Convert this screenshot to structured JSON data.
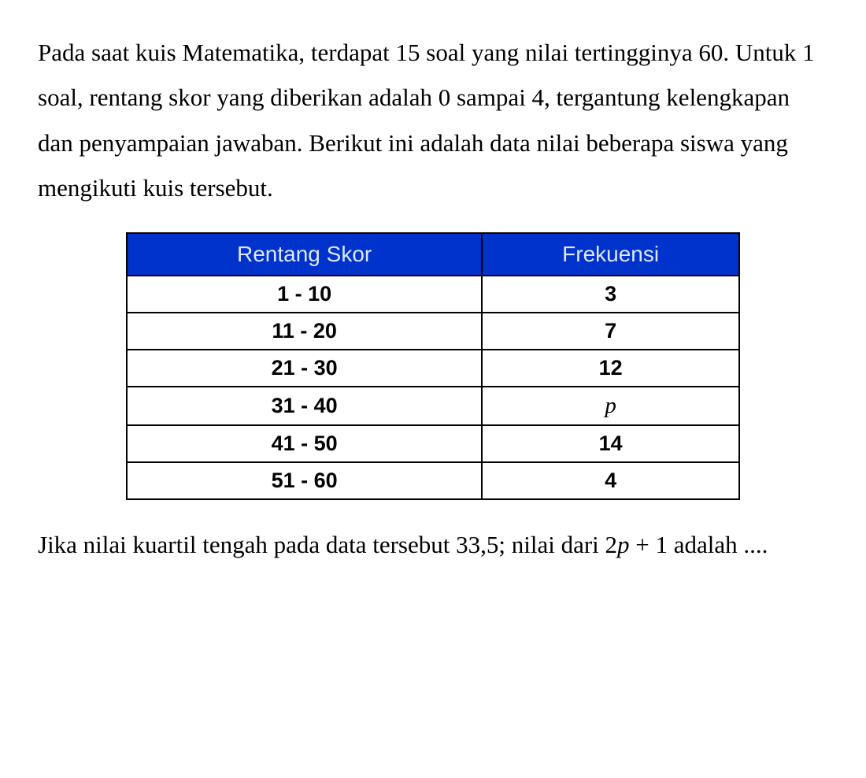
{
  "paragraph": "Pada saat kuis Matematika, terdapat 15 soal yang nilai tertingginya 60. Untuk 1 soal, rentang skor yang diberikan adalah 0 sampai 4, tergantung kelengkapan dan penyampaian jawaban. Berikut ini adalah data nilai beberapa siswa yang mengikuti kuis tersebut.",
  "table": {
    "headers": [
      "Rentang Skor",
      "Frekuensi"
    ],
    "rows": [
      [
        "1 - 10",
        "3"
      ],
      [
        "11 - 20",
        "7"
      ],
      [
        "21 - 30",
        "12"
      ],
      [
        "31 - 40",
        "p"
      ],
      [
        "41 - 50",
        "14"
      ],
      [
        "51 - 60",
        "4"
      ]
    ],
    "header_bg": "#0033cc",
    "header_text_color": "#dfe6ff",
    "border_color": "#000000",
    "cell_text_color": "#000000",
    "header_fontsize": 28,
    "cell_fontsize": 27
  },
  "question_parts": {
    "prefix": "Jika nilai kuartil tengah pada data tersebut 33,5; nilai dari ",
    "expr_2p": "2",
    "expr_var": "p",
    "expr_plus1": " + 1",
    "suffix": " adalah ...."
  },
  "background_color": "#ffffff",
  "text_color": "#000000",
  "body_fontsize": 31
}
